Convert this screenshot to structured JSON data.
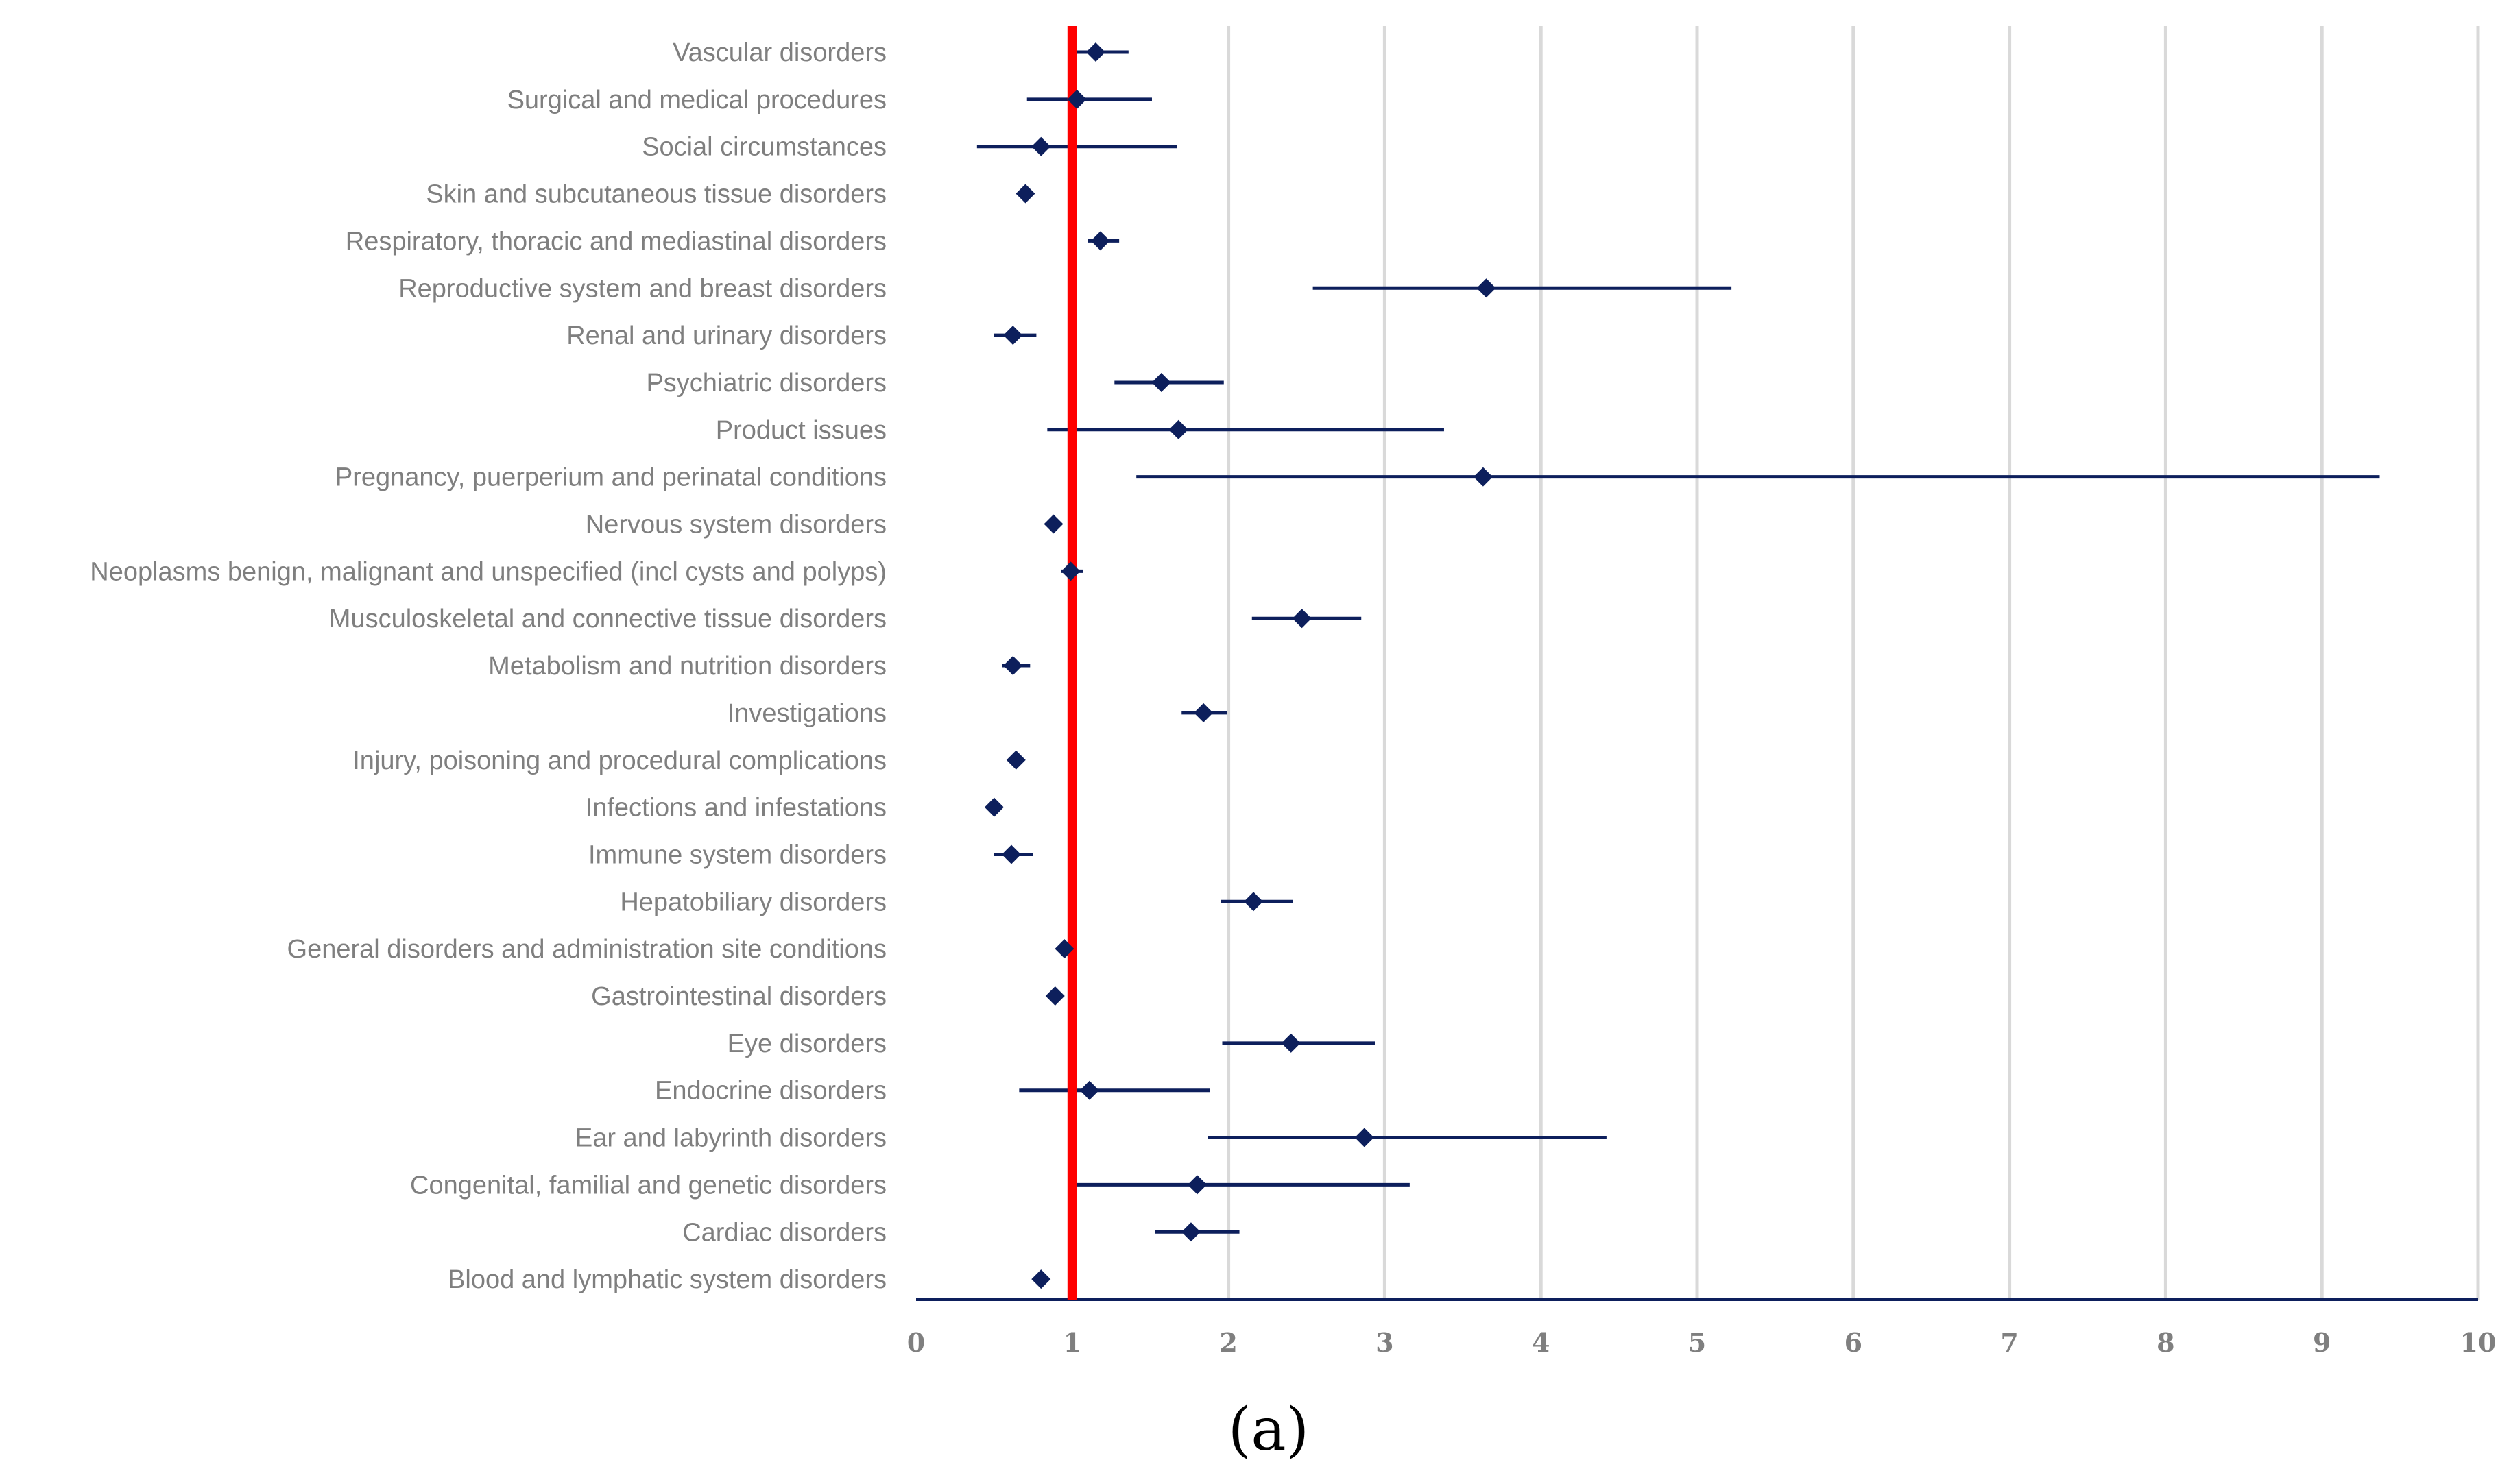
{
  "chart_data": {
    "type": "scatter",
    "subtype": "forest-plot",
    "title": "",
    "panel_label": "(a)",
    "xlabel": "",
    "ylabel": "",
    "xlim": [
      0,
      10
    ],
    "x_ticks": [
      0,
      1,
      2,
      3,
      4,
      5,
      6,
      7,
      8,
      9,
      10
    ],
    "grid": "vertical",
    "reference_line": {
      "x": 1,
      "color": "#ff0000"
    },
    "colors": {
      "point": "#0d1f5c",
      "error_bar": "#0d1f5c",
      "axis": "#0d1f5c",
      "grid": "#d9d9d9",
      "label": "#7f7f7f"
    },
    "categories": [
      "Vascular disorders",
      "Surgical and medical procedures",
      "Social circumstances",
      "Skin and subcutaneous tissue disorders",
      "Respiratory, thoracic and mediastinal disorders",
      "Reproductive system and breast disorders",
      "Renal and urinary disorders",
      "Psychiatric disorders",
      "Product issues",
      "Pregnancy, puerperium and perinatal conditions",
      "Nervous system disorders",
      "Neoplasms benign, malignant and unspecified (incl cysts and polyps)",
      "Musculoskeletal and connective tissue disorders",
      "Metabolism and nutrition disorders",
      "Investigations",
      "Injury, poisoning and procedural complications",
      "Infections and infestations",
      "Immune system disorders",
      "Hepatobiliary disorders",
      "General disorders and administration site conditions",
      "Gastrointestinal disorders",
      "Eye disorders",
      "Endocrine disorders",
      "Ear and labyrinth disorders",
      "Congenital, familial and genetic disorders",
      "Cardiac disorders",
      "Blood and lymphatic system disorders"
    ],
    "values": [
      1.15,
      1.03,
      0.8,
      0.7,
      1.18,
      3.65,
      0.62,
      1.57,
      1.68,
      3.63,
      0.88,
      0.99,
      2.47,
      0.62,
      1.84,
      0.64,
      0.5,
      0.61,
      2.16,
      0.95,
      0.89,
      2.4,
      1.11,
      2.87,
      1.8,
      1.76,
      0.8
    ],
    "ci_lower": [
      1.0,
      0.71,
      0.39,
      0.7,
      1.1,
      2.54,
      0.5,
      1.27,
      0.84,
      1.41,
      0.88,
      0.93,
      2.15,
      0.55,
      1.7,
      0.64,
      0.5,
      0.5,
      1.95,
      0.95,
      0.89,
      1.96,
      0.66,
      1.87,
      1.03,
      1.53,
      0.8
    ],
    "ci_upper": [
      1.36,
      1.51,
      1.67,
      0.7,
      1.3,
      5.22,
      0.77,
      1.97,
      3.38,
      9.37,
      0.88,
      1.07,
      2.85,
      0.73,
      1.99,
      0.64,
      0.5,
      0.75,
      2.41,
      0.95,
      0.89,
      2.94,
      1.88,
      4.42,
      3.16,
      2.07,
      0.8
    ]
  }
}
